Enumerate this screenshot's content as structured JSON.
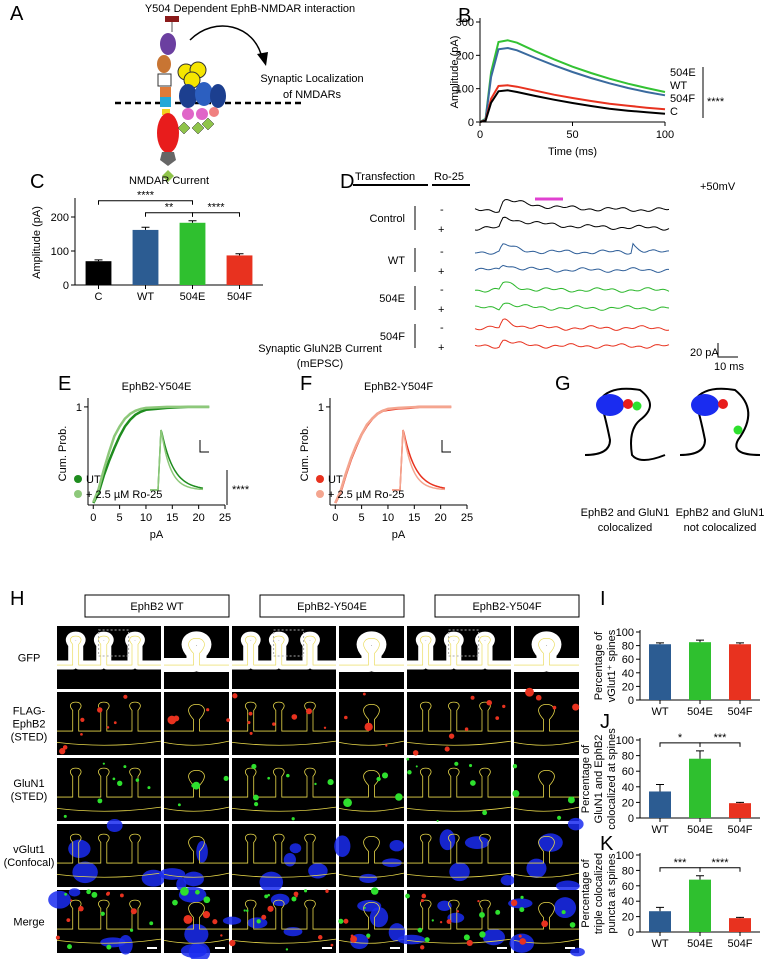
{
  "panel_labels": [
    "A",
    "B",
    "C",
    "D",
    "E",
    "F",
    "G",
    "H",
    "I",
    "J",
    "K"
  ],
  "panel_a": {
    "title": "Y504 Dependent EphB-NMDAR interaction",
    "caption": [
      "Synaptic Localization",
      "of NMDARs"
    ]
  },
  "panel_d": {
    "headers": [
      "Transfection",
      "Ro-25"
    ],
    "voltage": "+50mV",
    "rows": [
      "Control",
      "WT",
      "504E",
      "504F"
    ],
    "minus": "-",
    "plus": "+",
    "scale_y": "20 pA",
    "scale_x": "10 ms"
  },
  "panel_ef": {
    "title": "Synaptic GluN2B Current",
    "subtitle": "(mEPSC)"
  },
  "panel_g": {
    "left": [
      "EphB2 and GluN1",
      "colocalized"
    ],
    "right": [
      "EphB2 and GluN1",
      "not colocalized"
    ]
  },
  "panel_h": {
    "columns": [
      "EphB2 WT",
      "EphB2-Y504E",
      "EphB2-Y504F"
    ],
    "rows": [
      [
        "GFP"
      ],
      [
        "FLAG-",
        "EphB2",
        "(STED)"
      ],
      [
        "GluN1",
        "(STED)"
      ],
      [
        "vGlut1",
        "(Confocal)"
      ],
      [
        "Merge"
      ]
    ]
  },
  "chart_data": [
    {
      "type": "line",
      "xlabel": "Time (ms)",
      "ylabel": "Amplitude (pA)",
      "xlim": [
        0,
        100
      ],
      "ylim": [
        0,
        300
      ],
      "xticks": [
        0,
        50,
        100
      ],
      "yticks": [
        0,
        100,
        200,
        300
      ],
      "x": [
        0,
        3,
        6,
        10,
        15,
        20,
        30,
        40,
        50,
        60,
        70,
        80,
        90,
        100
      ],
      "series": [
        {
          "name": "504E",
          "color": "#33c233",
          "values": [
            0,
            10,
            150,
            240,
            245,
            238,
            212,
            188,
            166,
            147,
            130,
            115,
            102,
            90
          ]
        },
        {
          "name": "WT",
          "color": "#3a6a9e",
          "values": [
            0,
            8,
            135,
            218,
            222,
            215,
            192,
            170,
            150,
            132,
            116,
            102,
            90,
            80
          ]
        },
        {
          "name": "504F",
          "color": "#e8321f",
          "values": [
            0,
            5,
            70,
            108,
            110,
            106,
            94,
            82,
            72,
            63,
            55,
            49,
            43,
            38
          ]
        },
        {
          "name": "C",
          "color": "#000000",
          "values": [
            0,
            4,
            58,
            92,
            95,
            90,
            78,
            67,
            57,
            48,
            40,
            34,
            29,
            25
          ]
        }
      ],
      "significance": "****"
    },
    {
      "type": "bar",
      "title": "NMDAR Current",
      "ylabel": [
        "Amplitude (pA)"
      ],
      "categories": [
        "C",
        "WT",
        "504E",
        "504F"
      ],
      "values": [
        70,
        162,
        183,
        87
      ],
      "errors": [
        4,
        8,
        6,
        5
      ],
      "colors": [
        "#000000",
        "#2c5c92",
        "#2fc02f",
        "#e8321f"
      ],
      "ylim": [
        0,
        250
      ],
      "yticks": [
        0,
        100,
        200
      ],
      "annotations": [
        {
          "text": "****",
          "between": [
            "C",
            "504E"
          ]
        },
        {
          "text": "**",
          "between": [
            "WT",
            "504E"
          ]
        },
        {
          "text": "****",
          "between": [
            "504E",
            "504F"
          ]
        }
      ]
    },
    {
      "type": "line",
      "title": "EphB2-Y504E",
      "xlabel": "pA",
      "ylabel": "Cum. Prob.",
      "xlim": [
        -1,
        25
      ],
      "ylim": [
        0,
        1.05
      ],
      "xticks": [
        0,
        5,
        10,
        15,
        20,
        25
      ],
      "yticks": [
        1
      ],
      "x": [
        0,
        1,
        2,
        3,
        4,
        5,
        6,
        7,
        8,
        9,
        10,
        12,
        14,
        16,
        18,
        20,
        22
      ],
      "series": [
        {
          "name": "UT",
          "color": "#1e8c1e",
          "values": [
            0.02,
            0.12,
            0.3,
            0.45,
            0.58,
            0.7,
            0.8,
            0.87,
            0.92,
            0.95,
            0.97,
            0.98,
            0.99,
            0.995,
            1,
            1,
            1
          ]
        },
        {
          "name": "+ 2.5 µM Ro-25",
          "color": "#8dc87a",
          "values": [
            0.03,
            0.16,
            0.36,
            0.54,
            0.7,
            0.8,
            0.88,
            0.93,
            0.96,
            0.98,
            0.99,
            0.995,
            1,
            1,
            1,
            1,
            1
          ]
        }
      ],
      "significance": "****"
    },
    {
      "type": "line",
      "title": "EphB2-Y504F",
      "xlabel": "pA",
      "ylabel": "Cum. Prob.",
      "xlim": [
        -1,
        25
      ],
      "ylim": [
        0,
        1.05
      ],
      "xticks": [
        0,
        5,
        10,
        15,
        20,
        25
      ],
      "yticks": [
        1
      ],
      "x": [
        0,
        1,
        2,
        3,
        4,
        5,
        6,
        7,
        8,
        9,
        10,
        12,
        14,
        16,
        18,
        20,
        22
      ],
      "series": [
        {
          "name": "UT",
          "color": "#e8321f",
          "values": [
            0.02,
            0.13,
            0.31,
            0.47,
            0.6,
            0.72,
            0.81,
            0.88,
            0.93,
            0.96,
            0.97,
            0.985,
            0.99,
            1,
            1,
            1,
            1
          ]
        },
        {
          "name": "+ 2.5 µM Ro-25",
          "color": "#f4a58f",
          "values": [
            0.02,
            0.14,
            0.32,
            0.48,
            0.61,
            0.72,
            0.82,
            0.88,
            0.93,
            0.96,
            0.98,
            0.99,
            0.995,
            1,
            1,
            1,
            1
          ]
        }
      ]
    },
    {
      "type": "bar",
      "ylabel": [
        "Percentage of",
        "vGlut1⁺ spines"
      ],
      "categories": [
        "WT",
        "504E",
        "504F"
      ],
      "values": [
        82,
        85,
        82
      ],
      "errors": [
        2,
        3,
        2
      ],
      "colors": [
        "#2c5c92",
        "#2fc02f",
        "#e8321f"
      ],
      "ylim": [
        0,
        100
      ],
      "yticks": [
        0,
        20,
        40,
        60,
        80,
        100
      ]
    },
    {
      "type": "bar",
      "ylabel": [
        "Percentage of",
        "GluN1 and EphB2",
        "colocalized at spines"
      ],
      "categories": [
        "WT",
        "504E",
        "504F"
      ],
      "values": [
        34,
        76,
        19
      ],
      "errors": [
        9,
        10,
        1
      ],
      "colors": [
        "#2c5c92",
        "#2fc02f",
        "#e8321f"
      ],
      "ylim": [
        0,
        100
      ],
      "yticks": [
        0,
        20,
        40,
        60,
        80,
        100
      ],
      "annotations": [
        {
          "text": "*",
          "between": [
            "WT",
            "504E"
          ]
        },
        {
          "text": "***",
          "between": [
            "504E",
            "504F"
          ]
        }
      ]
    },
    {
      "type": "bar",
      "ylabel": [
        "Percentage of",
        "triple colocalized",
        "puncta at spines"
      ],
      "categories": [
        "WT",
        "504E",
        "504F"
      ],
      "values": [
        27,
        68,
        18
      ],
      "errors": [
        5,
        5,
        1
      ],
      "colors": [
        "#2c5c92",
        "#2fc02f",
        "#e8321f"
      ],
      "ylim": [
        0,
        100
      ],
      "yticks": [
        0,
        20,
        40,
        60,
        80,
        100
      ],
      "annotations": [
        {
          "text": "***",
          "between": [
            "WT",
            "504E"
          ]
        },
        {
          "text": "****",
          "between": [
            "504E",
            "504F"
          ]
        }
      ]
    }
  ]
}
